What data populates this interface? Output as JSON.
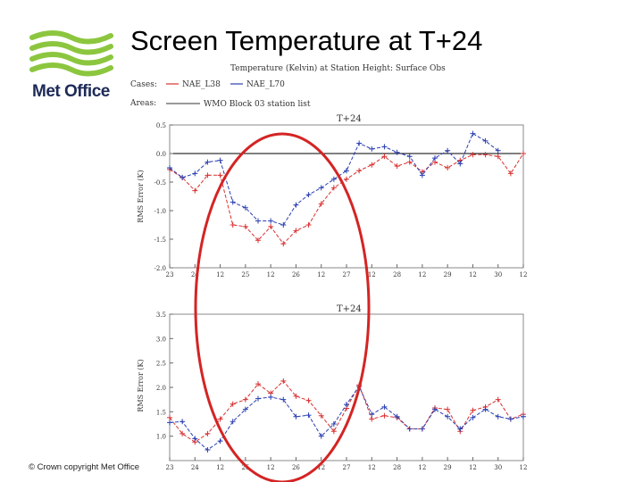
{
  "slide": {
    "title": "Screen Temperature at T+24",
    "logo_text": "Met Office",
    "copyright": "© Crown copyright   Met Office"
  },
  "colors": {
    "logo_green": "#8cc63f",
    "logo_navy": "#1d2a57",
    "series_red": "#d93030",
    "series_blue": "#2a3fb0",
    "highlight_ellipse": "#d42424"
  },
  "chart_data": [
    {
      "type": "line",
      "header": "Temperature (Kelvin) at Station Height: Surface Obs",
      "cases_label": "Cases:",
      "areas_label": "Areas:",
      "areas_value": "WMO Block 03 station list",
      "title": "T+24",
      "xlabel": "",
      "ylabel": "RMS Error (K)",
      "x_ticks": [
        {
          "x": 0,
          "label": "23"
        },
        {
          "x": 2,
          "label": "24"
        },
        {
          "x": 4,
          "label": "12"
        },
        {
          "x": 6,
          "label": "25"
        },
        {
          "x": 8,
          "label": "12"
        },
        {
          "x": 10,
          "label": "26"
        },
        {
          "x": 12,
          "label": "12"
        },
        {
          "x": 14,
          "label": "27"
        },
        {
          "x": 16,
          "label": "12"
        },
        {
          "x": 18,
          "label": "28"
        },
        {
          "x": 20,
          "label": "12"
        },
        {
          "x": 22,
          "label": "29"
        },
        {
          "x": 24,
          "label": "12"
        },
        {
          "x": 26,
          "label": "30"
        },
        {
          "x": 28,
          "label": "12"
        }
      ],
      "y_ticks": [
        0.5,
        0.0,
        -0.5,
        -1.0,
        -1.5,
        -2.0
      ],
      "y_tick_labels": [
        "0.5",
        "0.0",
        "-0.5",
        "-1.0",
        "-1.5",
        "-2.0"
      ],
      "xlim": [
        0,
        28
      ],
      "ylim": [
        -2.0,
        0.5
      ],
      "reference_line": 0.0,
      "series": [
        {
          "name": "NAE_L38",
          "color": "#d93030",
          "x": [
            0,
            1,
            2,
            3,
            4,
            5,
            6,
            7,
            8,
            9,
            10,
            11,
            12,
            13,
            14,
            15,
            16,
            17,
            18,
            19,
            20,
            21,
            22,
            23,
            24,
            25,
            26,
            27,
            28
          ],
          "values": [
            -0.28,
            -0.42,
            -0.65,
            -0.38,
            -0.38,
            -1.25,
            -1.28,
            -1.52,
            -1.28,
            -1.58,
            -1.35,
            -1.25,
            -0.88,
            -0.6,
            -0.45,
            -0.3,
            -0.2,
            -0.05,
            -0.22,
            -0.15,
            -0.32,
            -0.15,
            -0.25,
            -0.12,
            -0.02,
            -0.02,
            -0.05,
            -0.35,
            0.0
          ]
        },
        {
          "name": "NAE_L70",
          "color": "#2a3fb0",
          "x": [
            0,
            1,
            2,
            3,
            4,
            5,
            6,
            7,
            8,
            9,
            10,
            11,
            12,
            13,
            14,
            15,
            16,
            17,
            18,
            19,
            20,
            21,
            22,
            23,
            24,
            25,
            26
          ],
          "values": [
            -0.25,
            -0.42,
            -0.35,
            -0.15,
            -0.12,
            -0.85,
            -0.95,
            -1.18,
            -1.18,
            -1.25,
            -0.9,
            -0.72,
            -0.6,
            -0.45,
            -0.3,
            0.18,
            0.08,
            0.12,
            0.02,
            -0.05,
            -0.38,
            -0.08,
            0.05,
            -0.18,
            0.35,
            0.22,
            0.05
          ]
        }
      ]
    },
    {
      "type": "line",
      "title": "T+24",
      "xlabel": "",
      "ylabel": "RMS Error (K)",
      "x_ticks": [
        {
          "x": 0,
          "label": "23"
        },
        {
          "x": 2,
          "label": "24"
        },
        {
          "x": 4,
          "label": "12"
        },
        {
          "x": 6,
          "label": "25"
        },
        {
          "x": 8,
          "label": "12"
        },
        {
          "x": 10,
          "label": "26"
        },
        {
          "x": 12,
          "label": "12"
        },
        {
          "x": 14,
          "label": "27"
        },
        {
          "x": 16,
          "label": "12"
        },
        {
          "x": 18,
          "label": "28"
        },
        {
          "x": 20,
          "label": "12"
        },
        {
          "x": 22,
          "label": "29"
        },
        {
          "x": 24,
          "label": "12"
        },
        {
          "x": 26,
          "label": "30"
        },
        {
          "x": 28,
          "label": "12"
        }
      ],
      "y_ticks": [
        3.5,
        3.0,
        2.5,
        2.0,
        1.5,
        1.0
      ],
      "y_tick_labels": [
        "3.5",
        "3.0",
        "2.5",
        "2.0",
        "1.5",
        "1.0"
      ],
      "xlim": [
        0,
        28
      ],
      "ylim": [
        0.5,
        3.5
      ],
      "series": [
        {
          "name": "NAE_L38",
          "color": "#d93030",
          "x": [
            0,
            1,
            2,
            3,
            4,
            5,
            6,
            7,
            8,
            9,
            10,
            11,
            12,
            13,
            14,
            15,
            16,
            17,
            18,
            19,
            20,
            21,
            22,
            23,
            24,
            25,
            26,
            27,
            28
          ],
          "values": [
            1.38,
            1.05,
            0.88,
            1.05,
            1.35,
            1.66,
            1.75,
            2.07,
            1.88,
            2.13,
            1.82,
            1.73,
            1.42,
            1.1,
            1.57,
            2.05,
            1.35,
            1.42,
            1.38,
            1.15,
            1.15,
            1.58,
            1.55,
            1.1,
            1.53,
            1.6,
            1.75,
            1.35,
            1.45
          ]
        },
        {
          "name": "NAE_L70",
          "color": "#2a3fb0",
          "x": [
            0,
            1,
            2,
            3,
            4,
            5,
            6,
            7,
            8,
            9,
            10,
            11,
            12,
            13,
            14,
            15,
            16,
            17,
            18,
            19,
            20,
            21,
            22,
            23,
            24,
            25,
            26,
            27,
            28
          ],
          "values": [
            1.28,
            1.3,
            0.95,
            0.72,
            0.9,
            1.3,
            1.55,
            1.77,
            1.8,
            1.75,
            1.4,
            1.43,
            1.0,
            1.25,
            1.65,
            2.02,
            1.45,
            1.6,
            1.4,
            1.15,
            1.15,
            1.55,
            1.4,
            1.15,
            1.38,
            1.55,
            1.4,
            1.35,
            1.4
          ]
        }
      ]
    }
  ]
}
